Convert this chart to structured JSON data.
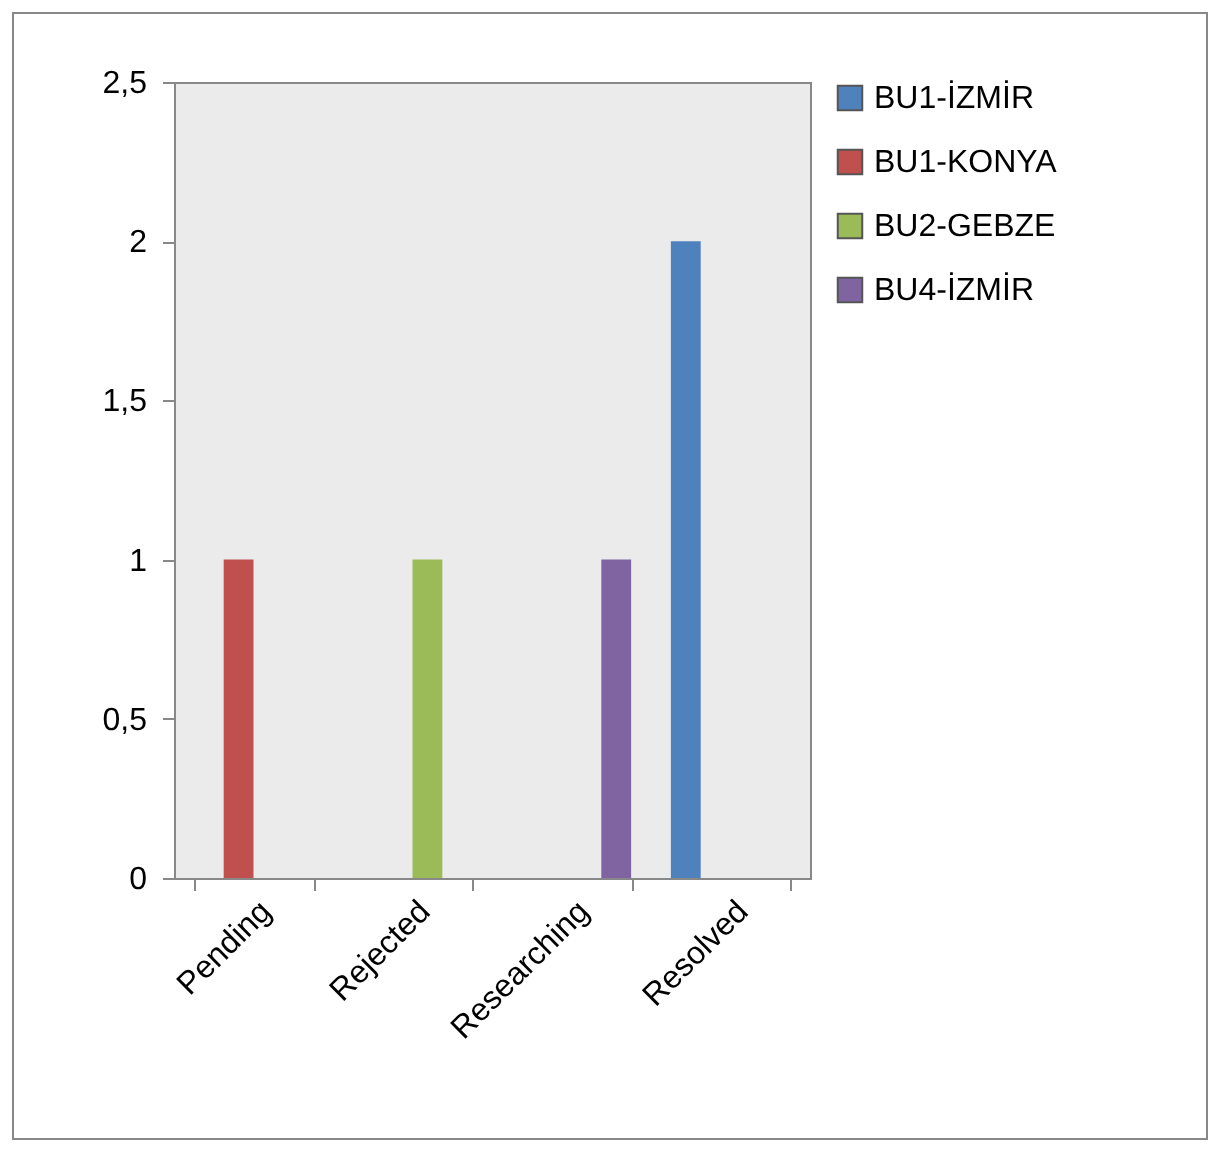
{
  "chart_data": {
    "type": "bar",
    "categories": [
      "Pending",
      "Rejected",
      "Researching",
      "Resolved"
    ],
    "series": [
      {
        "name": "BU1-İZMİR",
        "color": "#4f81bd",
        "values": [
          null,
          null,
          null,
          2
        ]
      },
      {
        "name": "BU1-KONYA",
        "color": "#c0504d",
        "values": [
          1,
          null,
          null,
          null
        ]
      },
      {
        "name": "BU2-GEBZE",
        "color": "#9bbb59",
        "values": [
          null,
          1,
          null,
          null
        ]
      },
      {
        "name": "BU4-İZMİR",
        "color": "#8064a2",
        "values": [
          null,
          null,
          1,
          null
        ]
      }
    ],
    "ylim": [
      0,
      2.5
    ],
    "yticks": [
      0,
      {
        "value": 0.5,
        "label": "0,5"
      },
      1,
      {
        "value": 1.5,
        "label": "1,5"
      },
      2,
      {
        "value": 2.5,
        "label": "2,5"
      }
    ],
    "grid": false,
    "legend": "right"
  }
}
